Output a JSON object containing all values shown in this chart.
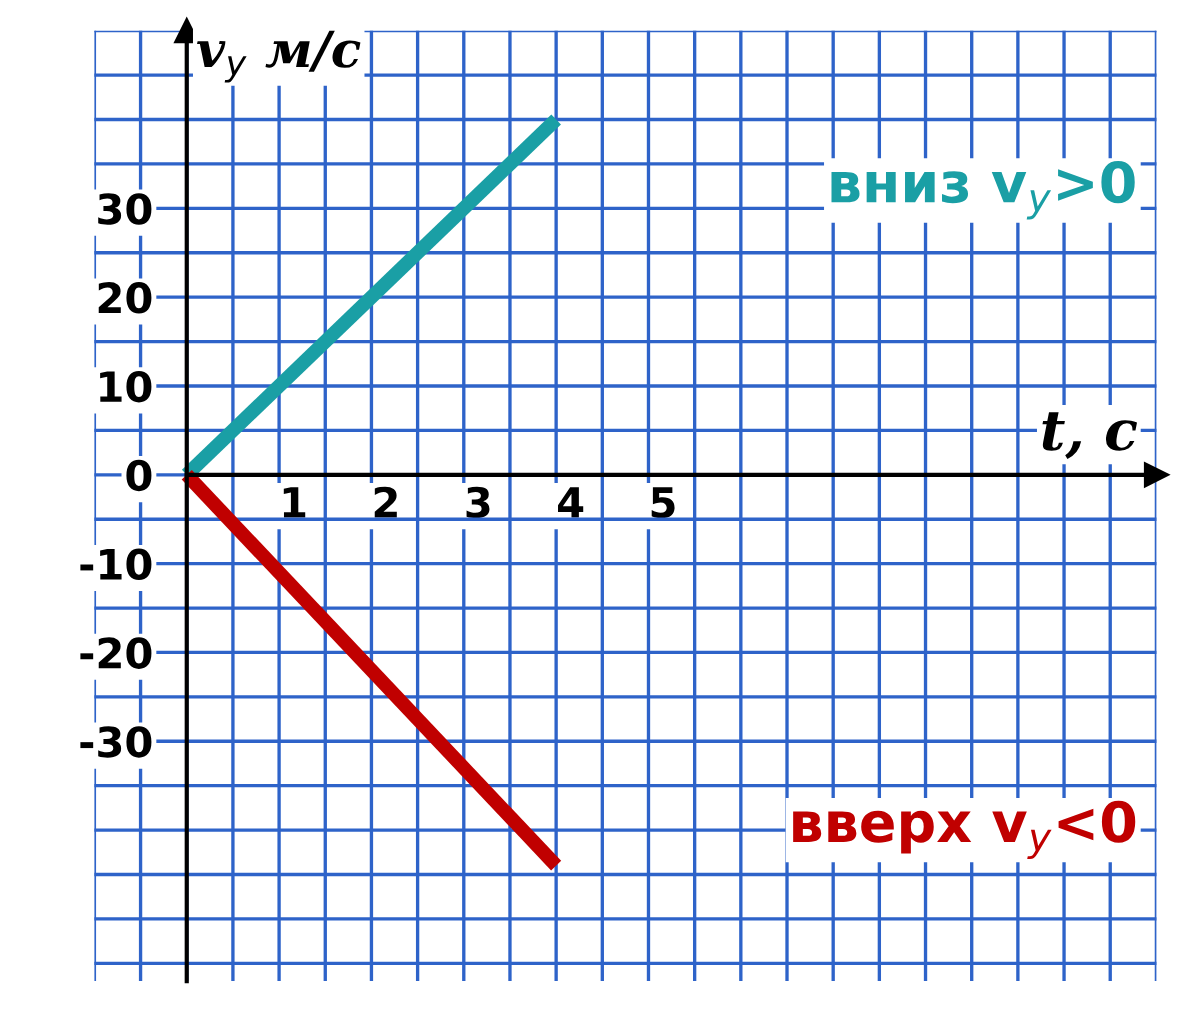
{
  "chart_data": {
    "type": "line",
    "ylabel": "v$_{y}$ м/с",
    "xlabel": "t, с",
    "x": [
      0,
      4
    ],
    "series": [
      {
        "color": "#1a9fa5",
        "values": [
          0,
          40
        ]
      },
      {
        "color": "#c00000",
        "values": [
          0,
          -44
        ]
      }
    ],
    "annotations": [
      "вниз v$_{y}$>0",
      "вверх v$_{y}$<0"
    ],
    "xlim": [
      -1,
      10.5
    ],
    "ylim": [
      -57,
      50
    ],
    "xticks": [
      1,
      2,
      3,
      4,
      5
    ],
    "yticks": [
      -30,
      -20,
      -10,
      0,
      10,
      20,
      30
    ],
    "grid": true,
    "marker": "none",
    "line_style": "solid"
  }
}
